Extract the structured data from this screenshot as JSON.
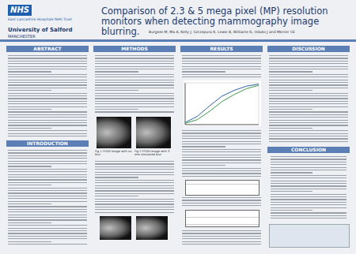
{
  "header": {
    "left_logo": "NHS",
    "left_logo_caption": "East Lancashire Hospitals NHS Trust",
    "right_logo": "University of Salford",
    "right_logo_caption": "MANCHESTER",
    "title": "Comparison of 2.3 & 5 mega pixel (MP) resolution monitors when detecting mammography image blurring.",
    "authors": "Burgess M, Ma A, Kelly J, Szczepura K, Lewis B, Williams G, Oduko J and Mercer CE"
  },
  "sections": {
    "abstract": "ABSTRACT",
    "introduction": "INTRODUCTION",
    "methods": "METHODS",
    "results": "RESULTS",
    "discussion": "DISCUSSION",
    "conclusion": "CONCLUSION"
  },
  "figures": [
    "Fig 1 FFDM image with no blur",
    "Fig 2 FFDM image with 3 mm simulated blur"
  ],
  "chart_data": {
    "type": "line",
    "x": [
      0,
      0.5,
      1,
      1.5,
      2,
      2.5,
      3
    ],
    "series": [
      {
        "color": "#2e5fa8",
        "values": [
          5,
          20,
          45,
          68,
          82,
          92,
          97
        ]
      },
      {
        "color": "#3a9a4a",
        "values": [
          3,
          12,
          32,
          55,
          72,
          86,
          94
        ]
      }
    ],
    "xlim": [
      0,
      3
    ],
    "xticks": [
      0,
      1,
      2,
      3
    ],
    "ylim": [
      0,
      100
    ],
    "yticks": [
      0,
      25,
      50,
      75,
      100
    ],
    "grid": true,
    "tick_labels": false
  }
}
